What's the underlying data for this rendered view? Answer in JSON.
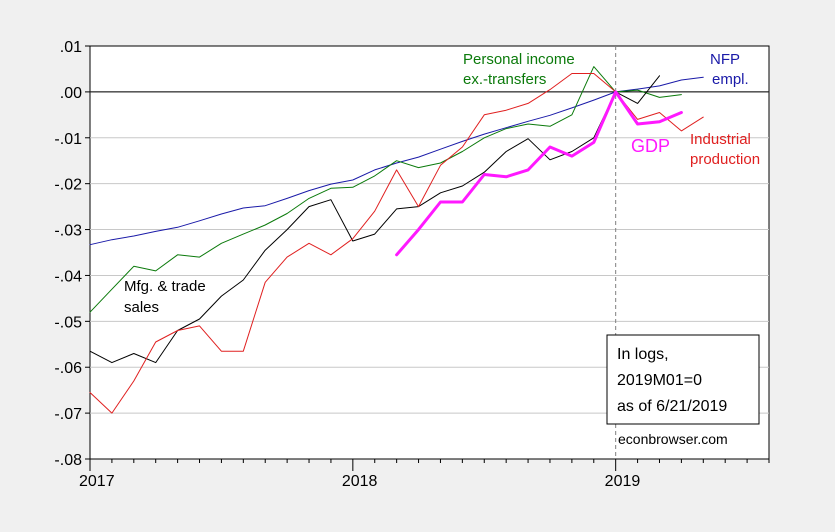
{
  "chart_data": {
    "type": "line",
    "y_range": [
      -0.08,
      0.01
    ],
    "x_range": [
      "2017-01",
      "2019-08"
    ],
    "y_ticks": [
      ".01",
      ".00",
      "-.01",
      "-.02",
      "-.03",
      "-.04",
      "-.05",
      "-.06",
      "-.07",
      "-.08"
    ],
    "y_tick_values": [
      0.01,
      0.0,
      -0.01,
      -0.02,
      -0.03,
      -0.04,
      -0.05,
      -0.06,
      -0.07,
      -0.08
    ],
    "x_ticks": [
      "2017",
      "2018",
      "2019"
    ],
    "grid": "horizontal gridlines",
    "reference_lines": {
      "horizontal_at": 0.0,
      "vertical_dashed_at": "2019-01"
    },
    "series": [
      {
        "name": "NFP empl.",
        "label_lines": [
          "NFP",
          "empl."
        ],
        "color": "#1a1aa8",
        "x": [
          "2017-01",
          "2017-02",
          "2017-03",
          "2017-04",
          "2017-05",
          "2017-06",
          "2017-07",
          "2017-08",
          "2017-09",
          "2017-10",
          "2017-11",
          "2017-12",
          "2018-01",
          "2018-02",
          "2018-03",
          "2018-04",
          "2018-05",
          "2018-06",
          "2018-07",
          "2018-08",
          "2018-09",
          "2018-10",
          "2018-11",
          "2018-12",
          "2019-01",
          "2019-02",
          "2019-03",
          "2019-04",
          "2019-05"
        ],
        "values": [
          -0.0333,
          -0.0322,
          -0.0314,
          -0.0304,
          -0.0295,
          -0.0281,
          -0.0266,
          -0.0253,
          -0.0248,
          -0.0232,
          -0.0215,
          -0.0201,
          -0.0192,
          -0.017,
          -0.0155,
          -0.0142,
          -0.0125,
          -0.0108,
          -0.0092,
          -0.0078,
          -0.0064,
          -0.0051,
          -0.0035,
          -0.0018,
          0.0,
          0.0006,
          0.0013,
          0.0026,
          0.0032
        ]
      },
      {
        "name": "Personal income ex.-transfers",
        "label_lines": [
          "Personal income",
          "ex.-transfers"
        ],
        "color": "#0b7a0b",
        "x": [
          "2017-01",
          "2017-02",
          "2017-03",
          "2017-04",
          "2017-05",
          "2017-06",
          "2017-07",
          "2017-08",
          "2017-09",
          "2017-10",
          "2017-11",
          "2017-12",
          "2018-01",
          "2018-02",
          "2018-03",
          "2018-04",
          "2018-05",
          "2018-06",
          "2018-07",
          "2018-08",
          "2018-09",
          "2018-10",
          "2018-11",
          "2018-12",
          "2019-01",
          "2019-02",
          "2019-03",
          "2019-04"
        ],
        "values": [
          -0.048,
          -0.043,
          -0.038,
          -0.039,
          -0.0355,
          -0.036,
          -0.033,
          -0.031,
          -0.029,
          -0.0265,
          -0.0232,
          -0.021,
          -0.0208,
          -0.0183,
          -0.015,
          -0.0165,
          -0.0155,
          -0.013,
          -0.01,
          -0.008,
          -0.007,
          -0.0075,
          -0.005,
          0.0055,
          0.0,
          0.0004,
          -0.0012,
          -0.0006
        ]
      },
      {
        "name": "Mfg. & trade sales",
        "label_lines": [
          "Mfg. & trade",
          "sales"
        ],
        "color": "#000000",
        "x": [
          "2017-01",
          "2017-02",
          "2017-03",
          "2017-04",
          "2017-05",
          "2017-06",
          "2017-07",
          "2017-08",
          "2017-09",
          "2017-10",
          "2017-11",
          "2017-12",
          "2018-01",
          "2018-02",
          "2018-03",
          "2018-04",
          "2018-05",
          "2018-06",
          "2018-07",
          "2018-08",
          "2018-09",
          "2018-10",
          "2018-11",
          "2018-12",
          "2019-01",
          "2019-02",
          "2019-03"
        ],
        "values": [
          -0.0565,
          -0.059,
          -0.057,
          -0.059,
          -0.052,
          -0.0495,
          -0.0445,
          -0.041,
          -0.0345,
          -0.03,
          -0.025,
          -0.0235,
          -0.0325,
          -0.031,
          -0.0255,
          -0.025,
          -0.022,
          -0.0205,
          -0.0175,
          -0.013,
          -0.0102,
          -0.0148,
          -0.013,
          -0.01,
          0.0,
          -0.0025,
          0.0035
        ]
      },
      {
        "name": "Industrial production",
        "label_lines": [
          "Industrial",
          "production"
        ],
        "color": "#e02020",
        "x": [
          "2017-01",
          "2017-02",
          "2017-03",
          "2017-04",
          "2017-05",
          "2017-06",
          "2017-07",
          "2017-08",
          "2017-09",
          "2017-10",
          "2017-11",
          "2017-12",
          "2018-01",
          "2018-02",
          "2018-03",
          "2018-04",
          "2018-05",
          "2018-06",
          "2018-07",
          "2018-08",
          "2018-09",
          "2018-10",
          "2018-11",
          "2018-12",
          "2019-01",
          "2019-02",
          "2019-03",
          "2019-04",
          "2019-05"
        ],
        "values": [
          -0.0655,
          -0.07,
          -0.063,
          -0.0545,
          -0.052,
          -0.051,
          -0.0565,
          -0.0565,
          -0.0415,
          -0.036,
          -0.033,
          -0.0355,
          -0.032,
          -0.026,
          -0.017,
          -0.025,
          -0.016,
          -0.012,
          -0.005,
          -0.004,
          -0.0025,
          0.0005,
          0.004,
          0.004,
          0.0,
          -0.006,
          -0.0045,
          -0.0085,
          -0.0055
        ]
      },
      {
        "name": "GDP",
        "label_lines": [
          "GDP"
        ],
        "color": "#ff19ff",
        "x": [
          "2018-03",
          "2018-04",
          "2018-05",
          "2018-06",
          "2018-07",
          "2018-08",
          "2018-09",
          "2018-10",
          "2018-11",
          "2018-12",
          "2019-01",
          "2019-02",
          "2019-03",
          "2019-04"
        ],
        "values": [
          -0.0355,
          -0.03,
          -0.024,
          -0.024,
          -0.018,
          -0.0185,
          -0.017,
          -0.012,
          -0.014,
          -0.011,
          0.0,
          -0.007,
          -0.0065,
          -0.0045
        ]
      }
    ],
    "annotation": {
      "lines": [
        "In logs,",
        "2019M01=0",
        "as of 6/21/2019"
      ]
    },
    "source_note": "econbrowser.com"
  }
}
